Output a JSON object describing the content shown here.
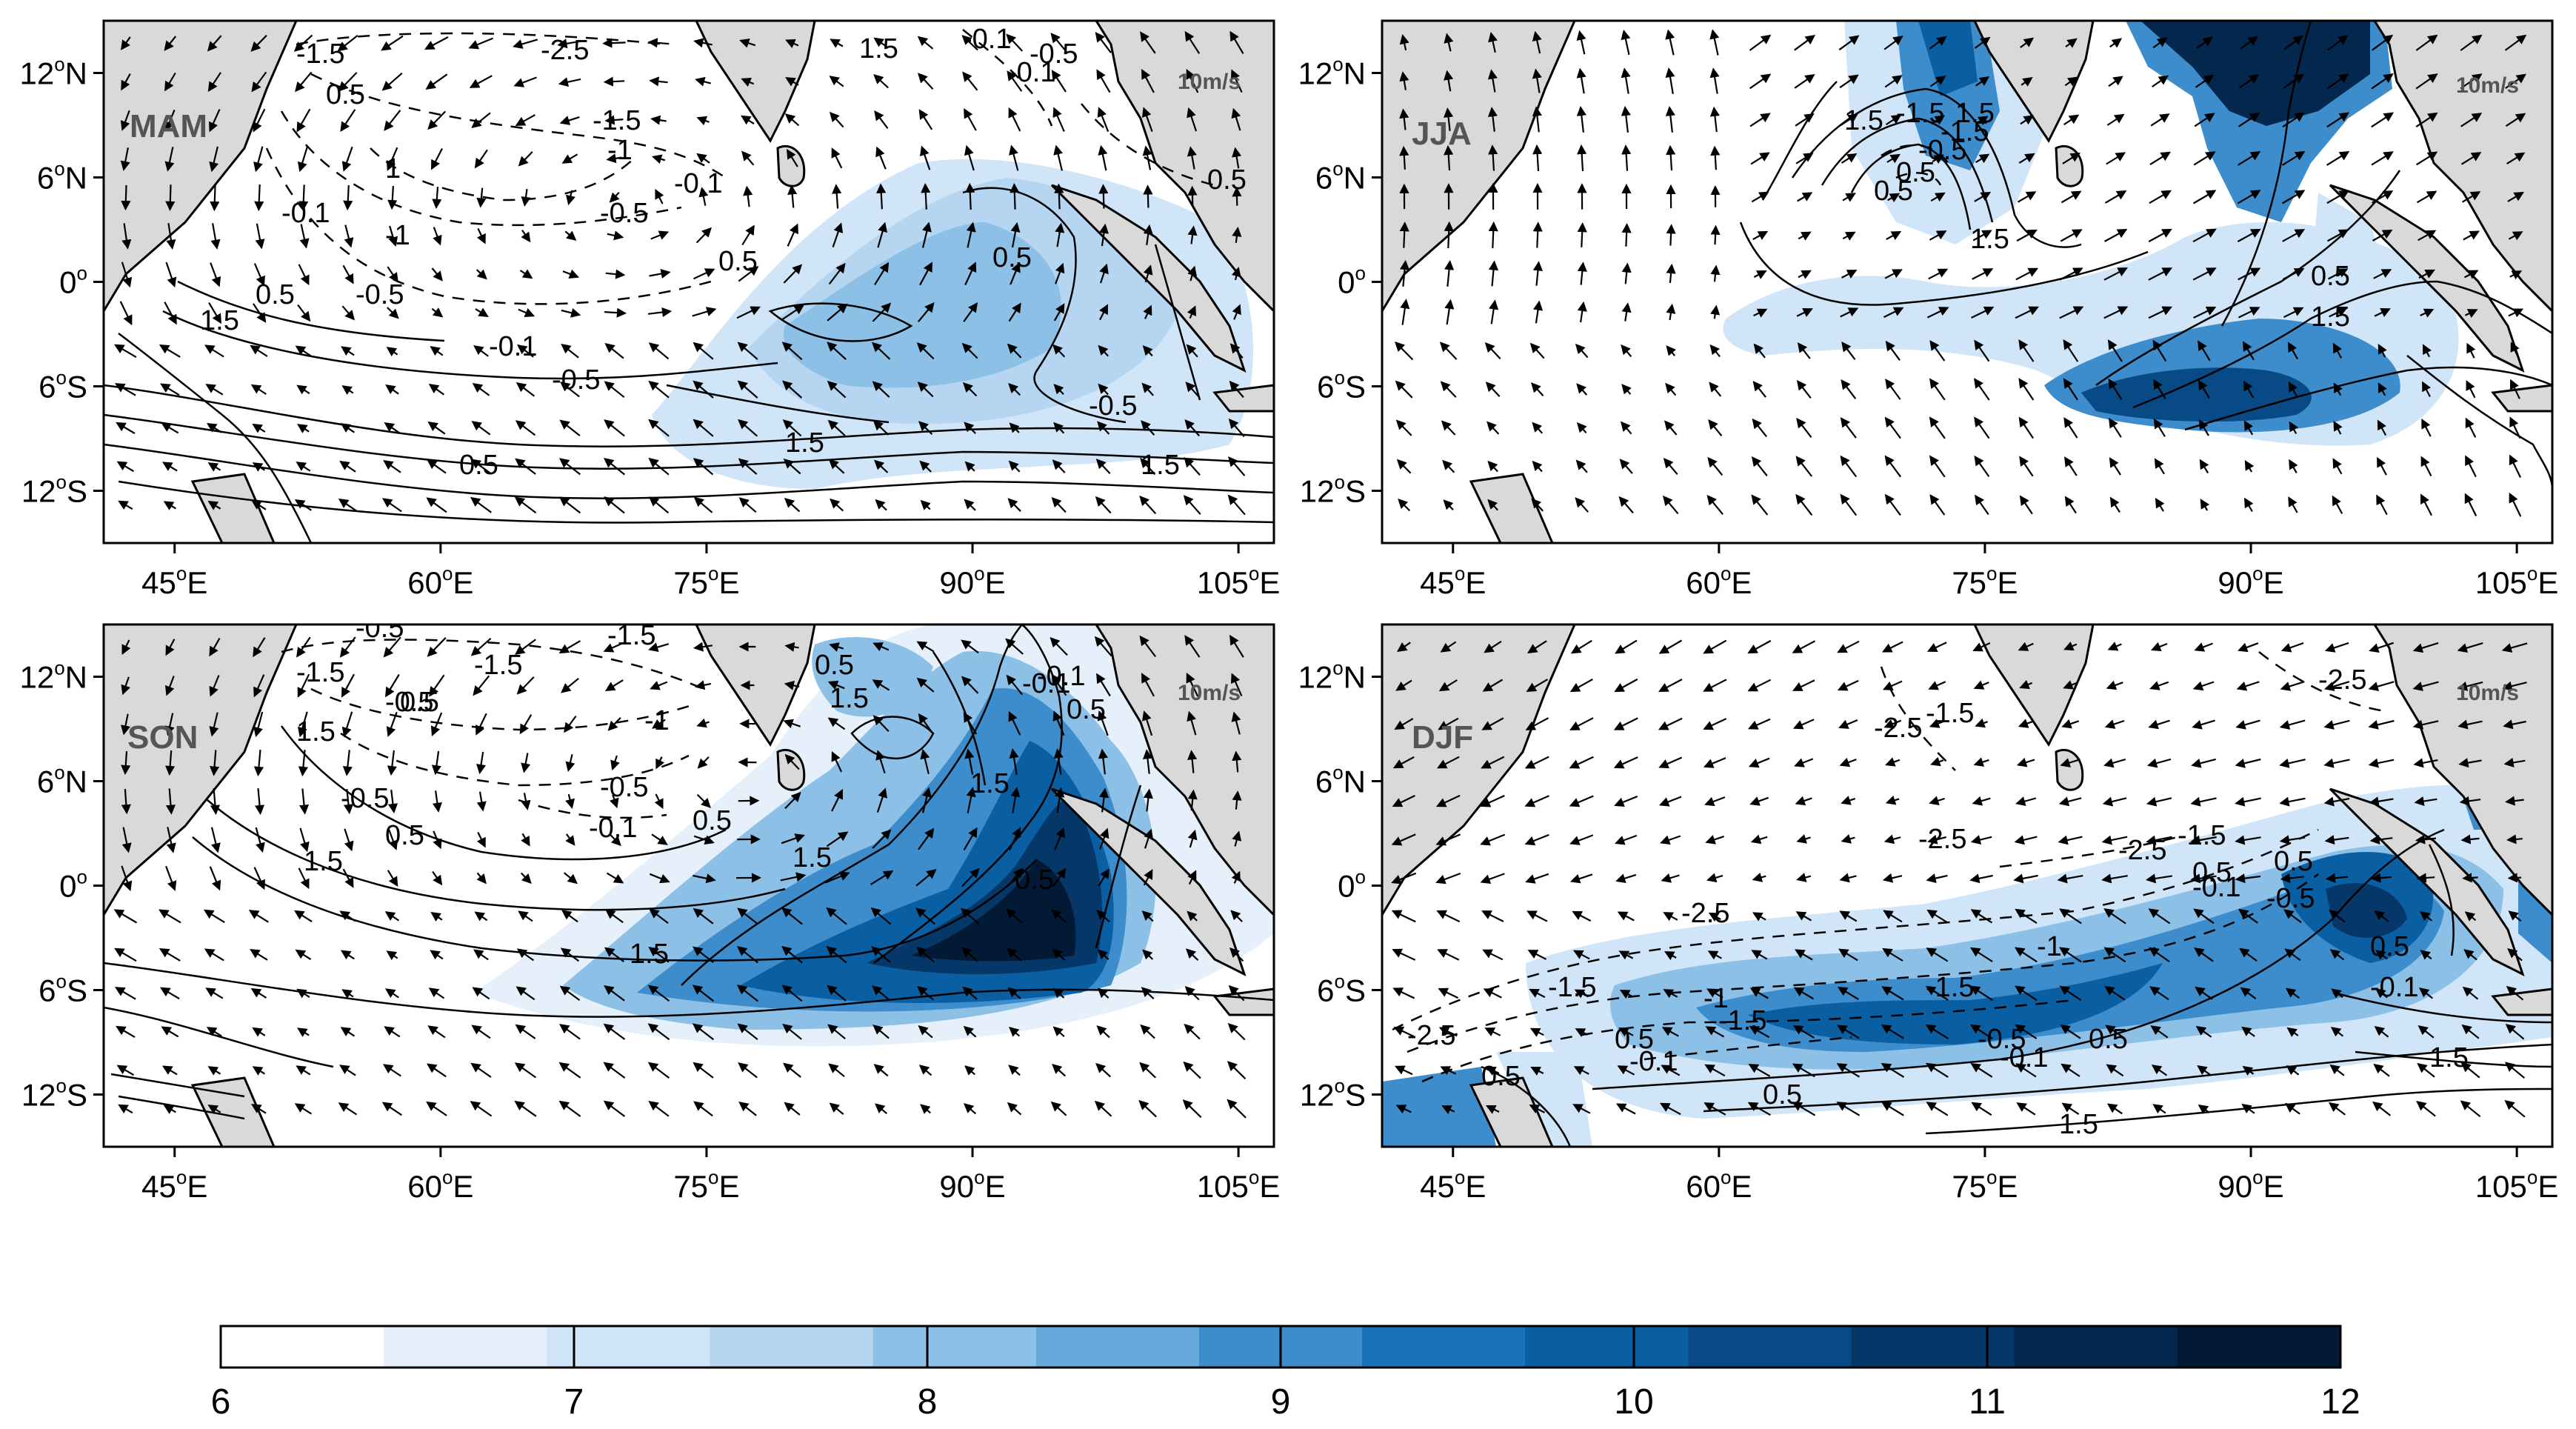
{
  "chart_data": {
    "type": "heatmap",
    "description_free": true,
    "x_ticks": [
      "45",
      "60",
      "75",
      "90",
      "105"
    ],
    "x_tick_suffix": "E",
    "y_ticks": [
      {
        "num": "12",
        "hem": "N"
      },
      {
        "num": "6",
        "hem": "N"
      },
      {
        "num": "0",
        "hem": ""
      },
      {
        "num": "6",
        "hem": "S"
      },
      {
        "num": "12",
        "hem": "S"
      }
    ],
    "x_values": [
      45,
      60,
      75,
      90,
      105
    ],
    "y_values": [
      12,
      6,
      0,
      -6,
      -12
    ],
    "xlim": [
      41,
      107
    ],
    "ylim": [
      -15,
      15
    ],
    "reference_vector": "10m/s",
    "panels": [
      {
        "label": "MAM",
        "contour_labels": [
          "-1.5",
          "-2.5",
          "1.5",
          "0.5",
          "-1.5",
          "-1",
          "-0.1",
          "-0.5",
          "-0.1",
          "-1",
          "0.5",
          "0.5",
          "-0.5",
          "-0.1",
          "-0.5",
          "0.5",
          "-0.5",
          "1.5",
          "1.5",
          "1.5",
          "-0.1",
          "-0.5",
          "-0.1",
          "1",
          "0.5",
          "0.5"
        ]
      },
      {
        "label": "JJA",
        "contour_labels": [
          "1.5",
          "-1.5",
          "0.5",
          "-0.5",
          "-1.5",
          "1.5",
          "0.5",
          "1.5",
          "1.5",
          "0.5"
        ]
      },
      {
        "label": "SON",
        "contour_labels": [
          "-0.5",
          "-1.5",
          "-1.5",
          "-1.5",
          "-0.5",
          "-1",
          "0.5",
          "1.5",
          "0.5",
          "1.5",
          "-0.5",
          "-0.1",
          "0.5",
          "-0.5",
          "0.5",
          "1.5",
          "-0.1",
          "0.5",
          "1.5",
          "0.5",
          "1.5",
          "1.5",
          "-0.1"
        ]
      },
      {
        "label": "DJF",
        "contour_labels": [
          "-2.5",
          "-1.5",
          "-2.5",
          "-2.5",
          "-2.5",
          "-1.5",
          "-2.5",
          "0.5",
          "-1",
          "-0.1",
          "0.5",
          "-0.5",
          "-1.5",
          "-1.5",
          "-1.5",
          "-0.5",
          "-0.1",
          "0.5",
          "-2.5",
          "0.5",
          "-1",
          "0.5",
          "-0.1",
          "0.5",
          "-0.1",
          "0.5",
          "1.5",
          "1.5"
        ]
      }
    ],
    "colorbar": {
      "ticks": [
        "6",
        "7",
        "8",
        "9",
        "10",
        "11",
        "12"
      ],
      "values": [
        6,
        7,
        8,
        9,
        10,
        11,
        12
      ],
      "colors": [
        "#ffffff",
        "#e5f0fb",
        "#d0e5f7",
        "#b5d5f0",
        "#8cc0e6",
        "#66a9dc",
        "#3d8dcc",
        "#1a72b8",
        "#0a5ea2",
        "#074a86",
        "#053869",
        "#03274d",
        "#021a36"
      ]
    }
  }
}
